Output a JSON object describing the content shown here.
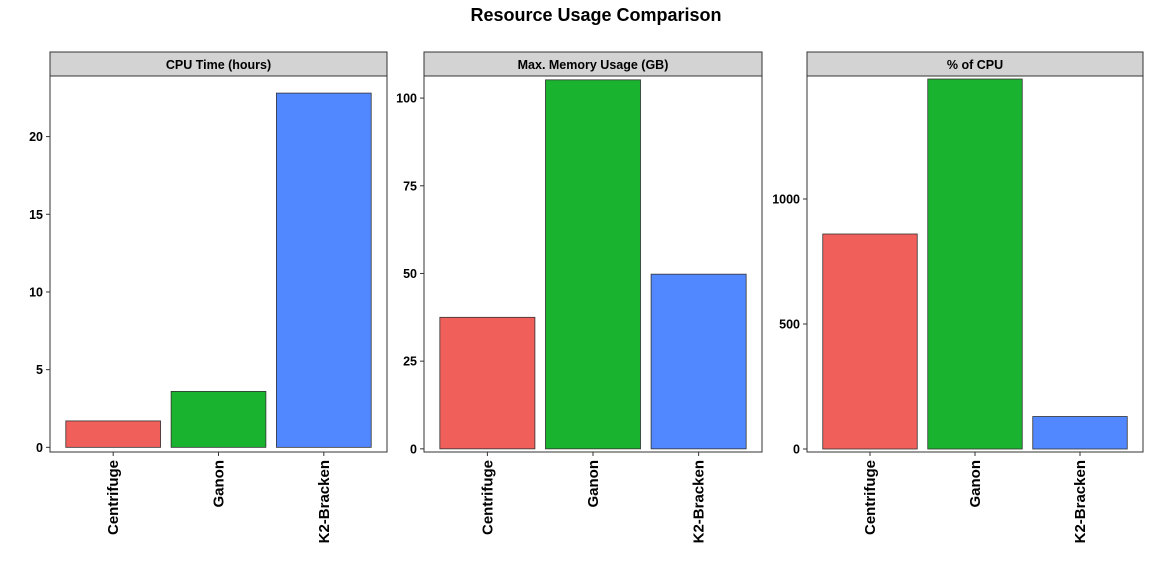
{
  "title": "Resource Usage Comparison",
  "chart_data": {
    "type": "bar",
    "layout": "facets",
    "categories": [
      "Centrifuge",
      "Ganon",
      "K2-Bracken"
    ],
    "colors": {
      "Centrifuge": "#F15F5B",
      "Ganon": "#1AB32F",
      "K2-Bracken": "#5288FF"
    },
    "panels": [
      {
        "strip": "CPU Time (hours)",
        "values": [
          1.7,
          3.6,
          22.8
        ],
        "ylim": [
          -0.3,
          23.9
        ],
        "yticks": [
          0,
          5,
          10,
          15,
          20
        ]
      },
      {
        "strip": "Max. Memory Usage (GB)",
        "values": [
          37.5,
          105.2,
          49.8
        ],
        "ylim": [
          -0.9,
          106.3
        ],
        "yticks": [
          0,
          25,
          50,
          75,
          100
        ]
      },
      {
        "strip": "% of CPU",
        "values": [
          860,
          1480,
          130
        ],
        "ylim": [
          -12,
          1492
        ],
        "yticks": [
          0,
          500,
          1000
        ]
      }
    ]
  }
}
